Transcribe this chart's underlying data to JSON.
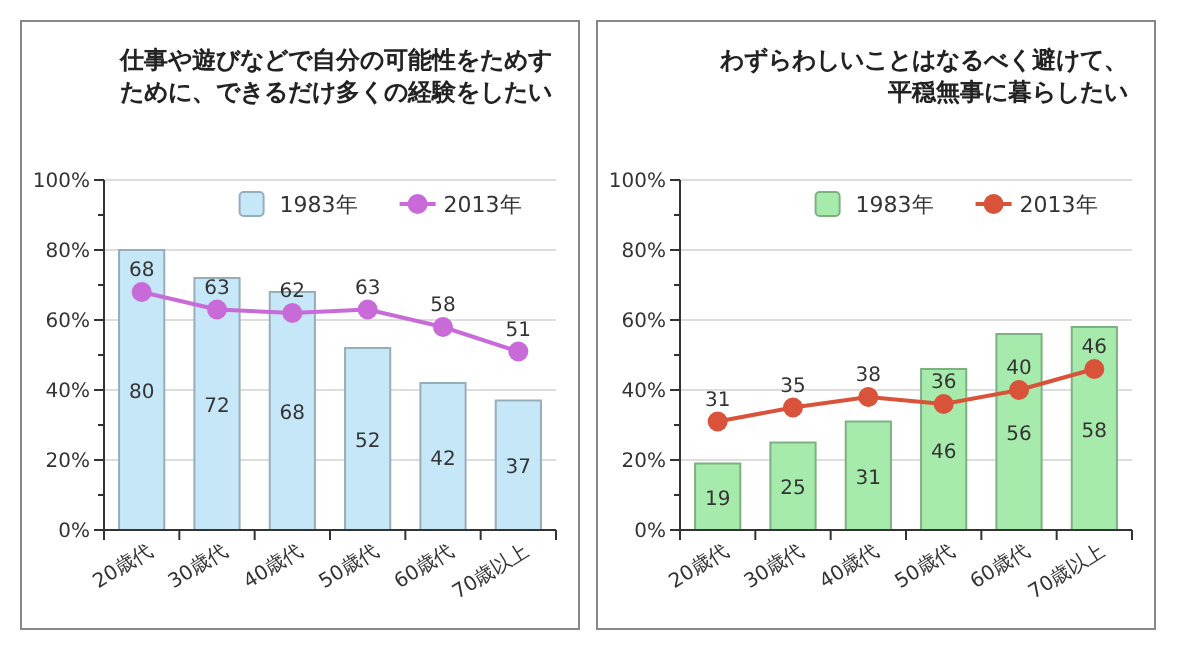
{
  "chart_data": [
    {
      "type": "bar",
      "title": "仕事や遊びなどで自分の可能性をためすために、できるだけ多くの経験をしたい",
      "categories": [
        "20歳代",
        "30歳代",
        "40歳代",
        "50歳代",
        "60歳代",
        "70歳以上"
      ],
      "series": [
        {
          "name": "1983年",
          "color": "#c6e7f8",
          "values": [
            80,
            72,
            68,
            52,
            42,
            37
          ]
        },
        {
          "name": "2013年",
          "type": "line",
          "color": "#c86bd9",
          "values": [
            68,
            63,
            62,
            63,
            58,
            51
          ]
        }
      ],
      "ylim": [
        0,
        100
      ],
      "yticks": [
        {
          "value": 0,
          "label": "0%"
        },
        {
          "value": 20,
          "label": "20%"
        },
        {
          "value": 40,
          "label": "40%"
        },
        {
          "value": 60,
          "label": "60%"
        },
        {
          "value": 80,
          "label": "80%"
        },
        {
          "value": 100,
          "label": "100%"
        }
      ],
      "grid": "y",
      "legend": "top",
      "marker": "circle",
      "data_labels": true
    },
    {
      "type": "bar",
      "title": "わずらわしいことはなるべく避けて、平穏無事に暮らしたい",
      "categories": [
        "20歳代",
        "30歳代",
        "40歳代",
        "50歳代",
        "60歳代",
        "70歳以上"
      ],
      "series": [
        {
          "name": "1983年",
          "color": "#a6ebab",
          "values": [
            19,
            25,
            31,
            46,
            56,
            58
          ]
        },
        {
          "name": "2013年",
          "type": "line",
          "color": "#d9533a",
          "values": [
            31,
            35,
            38,
            36,
            40,
            46
          ]
        }
      ],
      "ylim": [
        0,
        100
      ],
      "yticks": [
        {
          "value": 0,
          "label": "0%"
        },
        {
          "value": 20,
          "label": "20%"
        },
        {
          "value": 40,
          "label": "40%"
        },
        {
          "value": 60,
          "label": "60%"
        },
        {
          "value": 80,
          "label": "80%"
        },
        {
          "value": 100,
          "label": "100%"
        }
      ],
      "grid": "y",
      "legend": "top",
      "marker": "circle",
      "data_labels": true
    }
  ]
}
